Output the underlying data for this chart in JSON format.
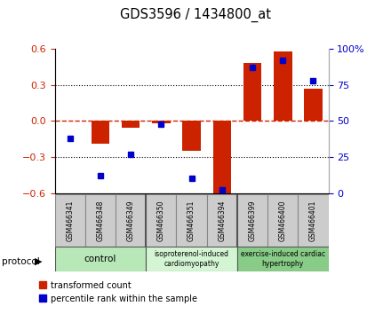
{
  "title": "GDS3596 / 1434800_at",
  "samples": [
    "GSM466341",
    "GSM466348",
    "GSM466349",
    "GSM466350",
    "GSM466351",
    "GSM466394",
    "GSM466399",
    "GSM466400",
    "GSM466401"
  ],
  "transformed_count": [
    0.0,
    -0.19,
    -0.06,
    -0.02,
    -0.25,
    -0.63,
    0.48,
    0.58,
    0.27
  ],
  "percentile_rank": [
    38,
    12,
    27,
    48,
    10,
    2,
    87,
    92,
    78
  ],
  "ylim_left": [
    -0.6,
    0.6
  ],
  "ylim_right": [
    0,
    100
  ],
  "yticks_left": [
    -0.6,
    -0.3,
    0.0,
    0.3,
    0.6
  ],
  "yticks_right": [
    0,
    25,
    50,
    75,
    100
  ],
  "bar_color": "#cc2200",
  "dot_color": "#0000cc",
  "zero_line_color": "#cc2200",
  "left_tick_color": "#cc2200",
  "right_tick_color": "#0000cc",
  "legend_items": [
    "transformed count",
    "percentile rank within the sample"
  ],
  "group_defs": [
    {
      "start": 0,
      "end": 3,
      "color": "#b8e8b8",
      "label": "control",
      "fontsize": 9
    },
    {
      "start": 3,
      "end": 6,
      "color": "#d4f5d4",
      "label": "isoproterenol-induced\ncardiomyopathy",
      "fontsize": 7
    },
    {
      "start": 6,
      "end": 9,
      "color": "#88cc88",
      "label": "exercise-induced cardiac\nhypertrophy",
      "fontsize": 7
    }
  ],
  "background_color": "#ffffff"
}
